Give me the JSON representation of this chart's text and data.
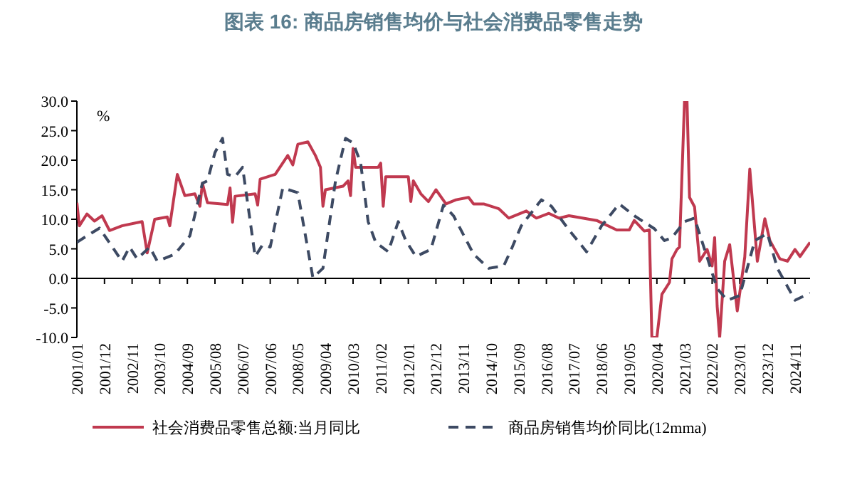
{
  "chart_data": {
    "type": "line",
    "title": "图表 16: 商品房销售均价与社会消费品零售走势",
    "ylabel": "%",
    "legend": "bottom",
    "marker": "none",
    "xlim": [
      "2001-01",
      "2025-05"
    ],
    "xticks": [
      {
        "value": "2001-01",
        "label": "2001/01"
      },
      {
        "value": "2001-12",
        "label": "2001/12"
      },
      {
        "value": "2002-11",
        "label": "2002/11"
      },
      {
        "value": "2003-10",
        "label": "2003/10"
      },
      {
        "value": "2004-09",
        "label": "2004/09"
      },
      {
        "value": "2005-08",
        "label": "2005/08"
      },
      {
        "value": "2006-07",
        "label": "2006/07"
      },
      {
        "value": "2007-06",
        "label": "2007/06"
      },
      {
        "value": "2008-05",
        "label": "2008/05"
      },
      {
        "value": "2009-04",
        "label": "2009/04"
      },
      {
        "value": "2010-03",
        "label": "2010/03"
      },
      {
        "value": "2011-02",
        "label": "2011/02"
      },
      {
        "value": "2012-01",
        "label": "2012/01"
      },
      {
        "value": "2012-12",
        "label": "2012/12"
      },
      {
        "value": "2013-11",
        "label": "2013/11"
      },
      {
        "value": "2014-10",
        "label": "2014/10"
      },
      {
        "value": "2015-09",
        "label": "2015/09"
      },
      {
        "value": "2016-08",
        "label": "2016/08"
      },
      {
        "value": "2017-07",
        "label": "2017/07"
      },
      {
        "value": "2018-06",
        "label": "2018/06"
      },
      {
        "value": "2019-05",
        "label": "2019/05"
      },
      {
        "value": "2020-04",
        "label": "2020/04"
      },
      {
        "value": "2021-03",
        "label": "2021/03"
      },
      {
        "value": "2022-02",
        "label": "2022/02"
      },
      {
        "value": "2023-01",
        "label": "2023/01"
      },
      {
        "value": "2023-12",
        "label": "2023/12"
      },
      {
        "value": "2024-11",
        "label": "2024/11"
      }
    ],
    "ylim": [
      -10,
      30
    ],
    "yticks": [
      {
        "value": 30,
        "label": "30.0"
      },
      {
        "value": 25,
        "label": "25.0"
      },
      {
        "value": 20,
        "label": "20.0"
      },
      {
        "value": 15,
        "label": "15.0"
      },
      {
        "value": 10,
        "label": "10.0"
      },
      {
        "value": 5,
        "label": "5.0"
      },
      {
        "value": 0,
        "label": "0.0"
      },
      {
        "value": -5,
        "label": "-5.0"
      },
      {
        "value": -10,
        "label": "-10.0"
      }
    ],
    "series": [
      {
        "name": "社会消费品零售总额:当月同比",
        "color": "#c0394f",
        "line_style": "solid",
        "x": [
          "2001-01",
          "2001-02",
          "2001-05",
          "2001-08",
          "2001-11",
          "2002-02",
          "2002-07",
          "2003-03",
          "2003-05",
          "2003-08",
          "2004-01",
          "2004-02",
          "2004-05",
          "2004-08",
          "2004-12",
          "2005-02",
          "2005-03",
          "2005-05",
          "2006-01",
          "2006-02",
          "2006-03",
          "2006-04",
          "2006-12",
          "2007-01",
          "2007-02",
          "2007-08",
          "2008-01",
          "2008-03",
          "2008-05",
          "2008-09",
          "2008-12",
          "2009-02",
          "2009-03",
          "2009-04",
          "2009-11",
          "2010-01",
          "2010-02",
          "2010-03",
          "2010-04",
          "2011-01",
          "2011-02",
          "2011-03",
          "2011-04",
          "2012-01",
          "2012-02",
          "2012-03",
          "2012-06",
          "2012-09",
          "2012-12",
          "2013-04",
          "2013-08",
          "2014-01",
          "2014-03",
          "2014-07",
          "2015-01",
          "2015-05",
          "2015-12",
          "2016-04",
          "2016-09",
          "2017-01",
          "2017-05",
          "2018-04",
          "2018-12",
          "2019-05",
          "2019-07",
          "2019-11",
          "2020-01",
          "2020-02",
          "2020-04",
          "2020-06",
          "2020-09",
          "2020-10",
          "2020-12",
          "2021-01",
          "2021-03",
          "2021-04",
          "2021-05",
          "2021-07",
          "2021-09",
          "2021-12",
          "2022-02",
          "2022-03",
          "2022-04",
          "2022-05",
          "2022-07",
          "2022-09",
          "2022-12",
          "2023-03",
          "2023-05",
          "2023-08",
          "2023-11",
          "2024-01",
          "2024-05",
          "2024-08",
          "2024-11",
          "2025-01",
          "2025-05"
        ],
        "values": [
          12.8,
          8.9,
          10.9,
          9.7,
          10.6,
          8.1,
          8.9,
          9.6,
          4.3,
          10.0,
          10.4,
          8.9,
          17.6,
          14.0,
          14.3,
          12.2,
          16.1,
          12.8,
          12.5,
          15.3,
          9.5,
          13.9,
          14.3,
          12.4,
          16.8,
          17.6,
          20.8,
          19.2,
          22.7,
          23.1,
          20.8,
          18.8,
          12.2,
          15.0,
          15.6,
          16.5,
          14.0,
          22.0,
          18.8,
          18.8,
          19.5,
          12.2,
          17.2,
          17.2,
          13.0,
          16.5,
          14.3,
          13.0,
          15.0,
          12.6,
          13.3,
          13.7,
          12.6,
          12.6,
          11.8,
          10.2,
          11.4,
          10.2,
          11.0,
          10.2,
          10.6,
          9.8,
          8.2,
          8.2,
          9.8,
          8.0,
          8.2,
          -10,
          -10,
          -2.7,
          -0.7,
          3.3,
          4.9,
          5.3,
          30,
          30,
          13.7,
          12.1,
          2.9,
          4.9,
          2.1,
          6.9,
          -4.7,
          -10,
          2.9,
          5.7,
          -5.5,
          3.6,
          18.5,
          2.9,
          10.1,
          6.4,
          3.3,
          2.9,
          4.9,
          3.7,
          6.1
        ]
      },
      {
        "name": "商品房销售均价同比(12mma)",
        "color": "#3d4a63",
        "line_style": "dashed",
        "x": [
          "2001-01",
          "2001-05",
          "2001-10",
          "2002-02",
          "2002-07",
          "2002-10",
          "2003-01",
          "2003-06",
          "2003-09",
          "2004-04",
          "2004-10",
          "2005-03",
          "2005-05",
          "2005-08",
          "2005-11",
          "2006-01",
          "2006-04",
          "2006-07",
          "2006-12",
          "2007-03",
          "2007-06",
          "2007-11",
          "2008-05",
          "2008-11",
          "2009-03",
          "2009-08",
          "2009-12",
          "2010-03",
          "2010-06",
          "2010-09",
          "2010-12",
          "2011-05",
          "2011-09",
          "2011-12",
          "2012-04",
          "2012-10",
          "2013-03",
          "2013-07",
          "2014-03",
          "2014-09",
          "2015-03",
          "2015-06",
          "2015-10",
          "2016-06",
          "2016-10",
          "2017-05",
          "2017-12",
          "2018-06",
          "2019-01",
          "2019-07",
          "2020-03",
          "2020-07",
          "2020-10",
          "2021-03",
          "2021-07",
          "2021-11",
          "2022-04",
          "2022-08",
          "2023-01",
          "2023-07",
          "2023-12",
          "2024-04",
          "2024-11",
          "2025-05"
        ],
        "values": [
          6.1,
          7.2,
          8.5,
          6.0,
          2.9,
          5.3,
          3.3,
          5.3,
          2.9,
          4.1,
          7.2,
          16.1,
          16.5,
          21.3,
          23.7,
          17.6,
          17.2,
          18.8,
          3.7,
          5.7,
          5.3,
          15.3,
          14.5,
          0.1,
          1.7,
          16.5,
          23.7,
          22.9,
          19.6,
          9.6,
          6.1,
          4.5,
          9.6,
          6.4,
          3.7,
          4.9,
          12.4,
          10.6,
          4.1,
          1.7,
          2.1,
          4.9,
          8.9,
          13.3,
          12.2,
          8.2,
          4.5,
          8.9,
          12.6,
          10.6,
          8.4,
          6.4,
          6.9,
          9.6,
          10.2,
          4.9,
          -1.7,
          -3.7,
          -2.9,
          6.4,
          7.6,
          1.7,
          -3.7,
          -2.5
        ]
      }
    ]
  }
}
